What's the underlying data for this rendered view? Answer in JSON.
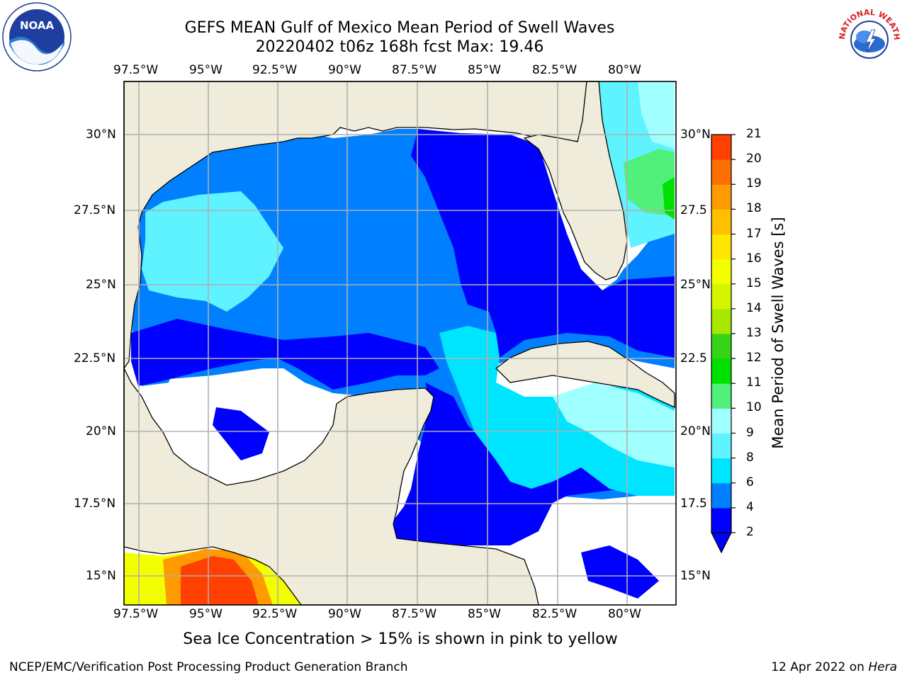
{
  "header": {
    "title_line1": "GEFS MEAN Gulf of Mexico Mean Period of Swell Waves",
    "title_line2": "20220402 t06z 168h fcst   Max: 19.46"
  },
  "map": {
    "lon_labels": [
      "97.5°W",
      "95°W",
      "92.5°W",
      "90°W",
      "87.5°W",
      "85°W",
      "82.5°W",
      "80°W"
    ],
    "lat_labels": [
      "30°N",
      "27.5°N",
      "25°N",
      "22.5°N",
      "20°N",
      "17.5°N",
      "15°N"
    ],
    "lat_labels_right": [
      "30°N",
      "27.5",
      "25°N",
      "22.5",
      "20°N",
      "17.5",
      "15°N"
    ],
    "land_color": "#efecdc",
    "grid_color": "#b0b0b0"
  },
  "colorbar": {
    "title": "Mean Period of Swell Waves [s]",
    "ticks": [
      "2",
      "4",
      "6",
      "8",
      "9",
      "10",
      "11",
      "12",
      "13",
      "14",
      "15",
      "16",
      "17",
      "18",
      "19",
      "20",
      "21"
    ],
    "colors": [
      "#0000ff",
      "#0080ff",
      "#00e5ff",
      "#5ff2ff",
      "#a0ffff",
      "#50f07a",
      "#00e000",
      "#36d416",
      "#a8e800",
      "#d4f500",
      "#f3ff00",
      "#ffe600",
      "#ffc000",
      "#ff9a00",
      "#ff7000",
      "#ff4000",
      "#ff0000"
    ],
    "extend_color": "#0000ff"
  },
  "notes": {
    "ice": "Sea Ice Concentration > 15% is shown in pink to yellow"
  },
  "footer": {
    "left": "NCEP/EMC/Verification Post Processing Product Generation Branch",
    "date": "12 Apr 2022 on ",
    "machine": "Hera"
  },
  "logos": {
    "noaa_text": "NOAA",
    "nws_text": "NATIONAL WEATHER SERVICE"
  }
}
